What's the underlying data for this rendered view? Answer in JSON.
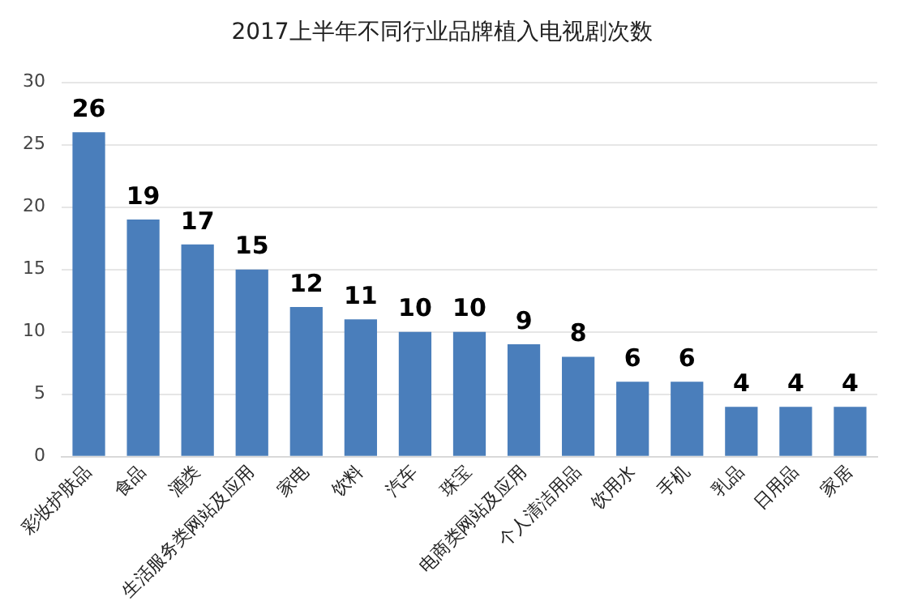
{
  "chart_data": {
    "type": "bar",
    "title": "2017上半年不同行业品牌植入电视剧次数",
    "categories": [
      "彩妆护肤品",
      "食品",
      "酒类",
      "生活服务类网站及应用",
      "家电",
      "饮料",
      "汽车",
      "珠宝",
      "电商类网站及应用",
      "个人清洁用品",
      "饮用水",
      "手机",
      "乳品",
      "日用品",
      "家居"
    ],
    "values": [
      26,
      19,
      17,
      15,
      12,
      11,
      10,
      10,
      9,
      8,
      6,
      6,
      4,
      4,
      4
    ],
    "color": "#4a7ebb",
    "ylim": [
      0,
      30
    ],
    "yticks": [
      0,
      5,
      10,
      15,
      20,
      25,
      30
    ],
    "grid": "y",
    "data_labels": true
  }
}
